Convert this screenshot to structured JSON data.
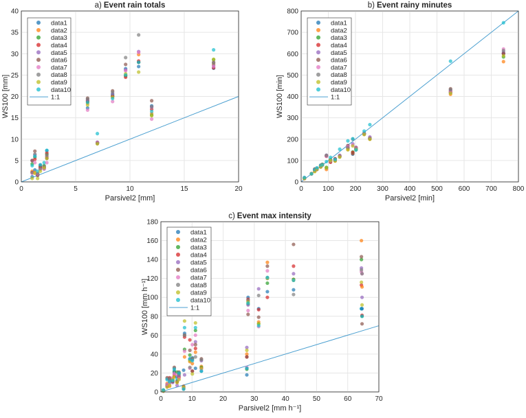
{
  "chart_data": [
    {
      "type": "scatter",
      "title_prefix": "a)",
      "title": "Event rain totals",
      "xlabel": "Parsivel2 [mm]",
      "ylabel": "WS100 [mm]",
      "xlim": [
        0,
        20
      ],
      "ylim": [
        0,
        40
      ],
      "xticks": [
        0,
        5,
        10,
        15,
        20
      ],
      "yticks": [
        0,
        5,
        10,
        15,
        20,
        25,
        30,
        35,
        40
      ],
      "grid": true,
      "legend_placement": "top-left",
      "series_names": [
        "data1",
        "data2",
        "data3",
        "data4",
        "data5",
        "data6",
        "data7",
        "data8",
        "data9",
        "data10"
      ],
      "reference_line": "1:1",
      "events": [
        {
          "x": 1.0,
          "y": [
            1.2,
            2.5,
            4.2,
            2.2,
            5.0,
            5.0,
            2.0,
            2.2,
            0.8,
            3.8
          ]
        },
        {
          "x": 1.25,
          "y": [
            2.8,
            2.2,
            5.8,
            5.3,
            6.3,
            7.2,
            4.5,
            6.5,
            2.0,
            6.0
          ]
        },
        {
          "x": 1.5,
          "y": [
            1.5,
            2.0,
            1.8,
            1.6,
            1.8,
            1.7,
            1.8,
            1.9,
            0.8,
            2.5
          ]
        },
        {
          "x": 1.75,
          "y": [
            3.2,
            3.5,
            3.8,
            3.3,
            4.0,
            3.6,
            3.0,
            3.0,
            2.5,
            4.0
          ]
        },
        {
          "x": 2.1,
          "y": [
            3.5,
            3.2,
            3.8,
            3.4,
            3.0,
            3.3,
            3.1,
            3.6,
            3.3,
            4.5
          ]
        },
        {
          "x": 2.35,
          "y": [
            7.3,
            6.0,
            6.5,
            6.8,
            5.8,
            5.5,
            4.5,
            6.3,
            5.5,
            7.4
          ]
        },
        {
          "x": 6.1,
          "y": [
            17.3,
            18.4,
            18.8,
            19.0,
            19.2,
            19.6,
            16.8,
            19.4,
            18.0,
            18.6
          ]
        },
        {
          "x": 7.0,
          "y": [
            9.1,
            9.0,
            9.2,
            9.1,
            9.3,
            9.2,
            9.2,
            9.0,
            8.9,
            11.3
          ]
        },
        {
          "x": 8.4,
          "y": [
            20.5,
            20.0,
            20.2,
            20.0,
            20.6,
            21.3,
            18.8,
            21.0,
            19.8,
            19.5
          ]
        },
        {
          "x": 9.6,
          "y": [
            26.5,
            25.0,
            24.8,
            24.5,
            26.2,
            27.5,
            26.0,
            29.1,
            25.3,
            25.0
          ]
        },
        {
          "x": 10.8,
          "y": [
            27.0,
            29.8,
            28.0,
            28.3,
            30.5,
            28.0,
            30.3,
            34.4,
            25.7,
            28.0
          ]
        },
        {
          "x": 12.0,
          "y": [
            17.8,
            16.0,
            15.6,
            17.0,
            17.5,
            19.0,
            14.7,
            17.6,
            15.5,
            16.5
          ]
        },
        {
          "x": 17.7,
          "y": [
            26.6,
            27.5,
            28.6,
            26.7,
            27.2,
            28.0,
            27.0,
            27.8,
            28.7,
            30.9
          ]
        }
      ]
    },
    {
      "type": "scatter",
      "title_prefix": "b)",
      "title": "Event rainy minutes",
      "xlabel": "Parsivel2 [min]",
      "ylabel": "WS100 [min]",
      "xlim": [
        0,
        800
      ],
      "ylim": [
        0,
        800
      ],
      "xticks": [
        0,
        100,
        200,
        300,
        400,
        500,
        600,
        700,
        800
      ],
      "yticks": [
        0,
        100,
        200,
        300,
        400,
        500,
        600,
        700,
        800
      ],
      "grid": true,
      "legend_placement": "top-left",
      "series_names": [
        "data1",
        "data2",
        "data3",
        "data4",
        "data5",
        "data6",
        "data7",
        "data8",
        "data9",
        "data10"
      ],
      "reference_line": "1:1",
      "events": [
        {
          "x": 12,
          "y": [
            20,
            15,
            18,
            17,
            19,
            16,
            18,
            17,
            16,
            20
          ]
        },
        {
          "x": 38,
          "y": [
            38,
            38,
            38,
            39,
            38,
            38,
            37,
            38,
            38,
            38
          ]
        },
        {
          "x": 50,
          "y": [
            55,
            50,
            58,
            60,
            55,
            60,
            56,
            54,
            48,
            58
          ]
        },
        {
          "x": 58,
          "y": [
            60,
            58,
            62,
            60,
            62,
            58,
            60,
            61,
            59,
            66
          ]
        },
        {
          "x": 72,
          "y": [
            72,
            70,
            75,
            78,
            74,
            70,
            72,
            73,
            70,
            78
          ]
        },
        {
          "x": 78,
          "y": [
            80,
            78,
            82,
            80,
            80,
            82,
            80,
            80,
            79,
            80
          ]
        },
        {
          "x": 93,
          "y": [
            65,
            58,
            68,
            120,
            125,
            122,
            120,
            124,
            66,
            95
          ]
        },
        {
          "x": 108,
          "y": [
            100,
            95,
            105,
            92,
            100,
            95,
            98,
            103,
            100,
            115
          ]
        },
        {
          "x": 125,
          "y": [
            100,
            98,
            105,
            108,
            106,
            108,
            104,
            102,
            98,
            105
          ]
        },
        {
          "x": 142,
          "y": [
            120,
            118,
            122,
            120,
            124,
            122,
            120,
            118,
            116,
            153
          ]
        },
        {
          "x": 172,
          "y": [
            158,
            152,
            160,
            162,
            168,
            170,
            165,
            160,
            150,
            192
          ]
        },
        {
          "x": 190,
          "y": [
            130,
            135,
            140,
            138,
            178,
            132,
            172,
            200,
            168,
            202
          ]
        },
        {
          "x": 202,
          "y": [
            150,
            155,
            152,
            158,
            162,
            160,
            158,
            155,
            152,
            150
          ]
        },
        {
          "x": 232,
          "y": [
            225,
            222,
            228,
            225,
            228,
            226,
            225,
            224,
            222,
            238
          ]
        },
        {
          "x": 253,
          "y": [
            205,
            200,
            202,
            203,
            210,
            204,
            206,
            205,
            200,
            268
          ]
        },
        {
          "x": 550,
          "y": [
            420,
            410,
            418,
            425,
            430,
            436,
            420,
            432,
            415,
            565
          ]
        },
        {
          "x": 745,
          "y": [
            600,
            563,
            585,
            600,
            608,
            602,
            622,
            615,
            590,
            745
          ]
        }
      ]
    },
    {
      "type": "scatter",
      "title_prefix": "c)",
      "title": "Event max intensity",
      "xlabel": "Parsivel2 [mm h⁻¹]",
      "ylabel": "WS100 [mm h⁻¹]",
      "xlim": [
        0,
        70
      ],
      "ylim": [
        0,
        180
      ],
      "xticks": [
        0,
        10,
        20,
        30,
        40,
        50,
        60,
        70
      ],
      "yticks": [
        0,
        20,
        40,
        60,
        80,
        100,
        120,
        140,
        160,
        180
      ],
      "grid": true,
      "legend_placement": "top-left",
      "series_names": [
        "data1",
        "data2",
        "data3",
        "data4",
        "data5",
        "data6",
        "data7",
        "data8",
        "data9",
        "data10"
      ],
      "reference_line": "1:1",
      "events": [
        {
          "x": 0.8,
          "y": [
            2,
            1,
            1,
            1,
            1,
            1,
            1,
            1,
            1,
            2
          ]
        },
        {
          "x": 2.0,
          "y": [
            8,
            9,
            7,
            6,
            6,
            15,
            8,
            14,
            5,
            13
          ]
        },
        {
          "x": 2.8,
          "y": [
            13,
            6,
            10,
            15,
            12,
            14,
            9,
            14,
            7,
            11
          ]
        },
        {
          "x": 3.8,
          "y": [
            13,
            14,
            12,
            11,
            10,
            11,
            15,
            12,
            13,
            12
          ]
        },
        {
          "x": 4.3,
          "y": [
            22,
            16,
            21,
            18,
            20,
            26,
            19,
            25,
            16,
            24
          ]
        },
        {
          "x": 5.2,
          "y": [
            16,
            10,
            21,
            11,
            7,
            11,
            18,
            12,
            10,
            14
          ]
        },
        {
          "x": 5.8,
          "y": [
            20,
            15,
            19,
            16,
            17,
            21,
            14,
            18,
            13,
            20
          ]
        },
        {
          "x": 7.3,
          "y": [
            23,
            5,
            5,
            4,
            4,
            6,
            4,
            3,
            5,
            3
          ]
        },
        {
          "x": 7.6,
          "y": [
            62,
            37,
            45,
            58,
            18,
            60,
            43,
            60,
            75,
            68
          ]
        },
        {
          "x": 9.3,
          "y": [
            34,
            32,
            39,
            55,
            35,
            44,
            25,
            26,
            33,
            35
          ]
        },
        {
          "x": 10.1,
          "y": [
            36,
            30,
            35,
            22,
            34,
            22,
            50,
            35,
            19,
            33
          ]
        },
        {
          "x": 11.1,
          "y": [
            25,
            42,
            65,
            46,
            53,
            50,
            60,
            37,
            73,
            68
          ]
        },
        {
          "x": 13.0,
          "y": [
            22,
            27,
            26,
            25,
            33,
            35,
            24,
            34,
            25,
            22
          ]
        },
        {
          "x": 27.6,
          "y": [
            18,
            40,
            24,
            37,
            47,
            37,
            26,
            25,
            44,
            25
          ]
        },
        {
          "x": 28.0,
          "y": [
            100,
            96,
            93,
            98,
            92,
            82,
            86,
            97,
            95,
            94
          ]
        },
        {
          "x": 31.4,
          "y": [
            88,
            74,
            72,
            87,
            109,
            79,
            69,
            102,
            72,
            70
          ]
        },
        {
          "x": 34.2,
          "y": [
            106,
            137,
            115,
            100,
            120,
            133,
            128,
            121,
            120,
            121
          ]
        },
        {
          "x": 42.6,
          "y": [
            108,
            119,
            119,
            133,
            125,
            156,
            118,
            103,
            118,
            118
          ]
        },
        {
          "x": 64.4,
          "y": [
            88,
            160,
            140,
            113,
            131,
            143,
            127,
            129,
            116,
            88
          ]
        },
        {
          "x": 64.6,
          "y": [
            88,
            111,
            80,
            81,
            100,
            72,
            125,
            125,
            92,
            80
          ]
        }
      ]
    }
  ],
  "colors": {
    "series": [
      "#1f77b4",
      "#ff7f0e",
      "#2ca02c",
      "#d62728",
      "#9467bd",
      "#8c564b",
      "#e377c2",
      "#7f7f7f",
      "#bcbd22",
      "#17becf"
    ],
    "line": "#4a9fd0",
    "grid": "#e6e6e6",
    "axis": "#262626"
  }
}
